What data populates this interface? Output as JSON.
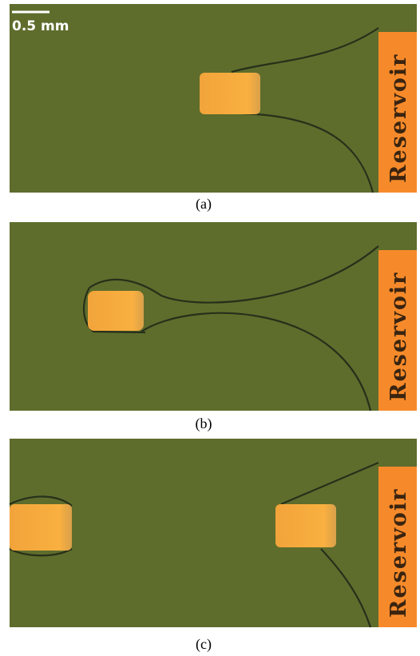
{
  "scale_bar": {
    "label": "0.5 mm"
  },
  "panels": [
    {
      "label": "(a)",
      "reservoir": "Reservoir"
    },
    {
      "label": "(b)",
      "reservoir": "Reservoir"
    },
    {
      "label": "(c)",
      "reservoir": "Reservoir"
    }
  ]
}
